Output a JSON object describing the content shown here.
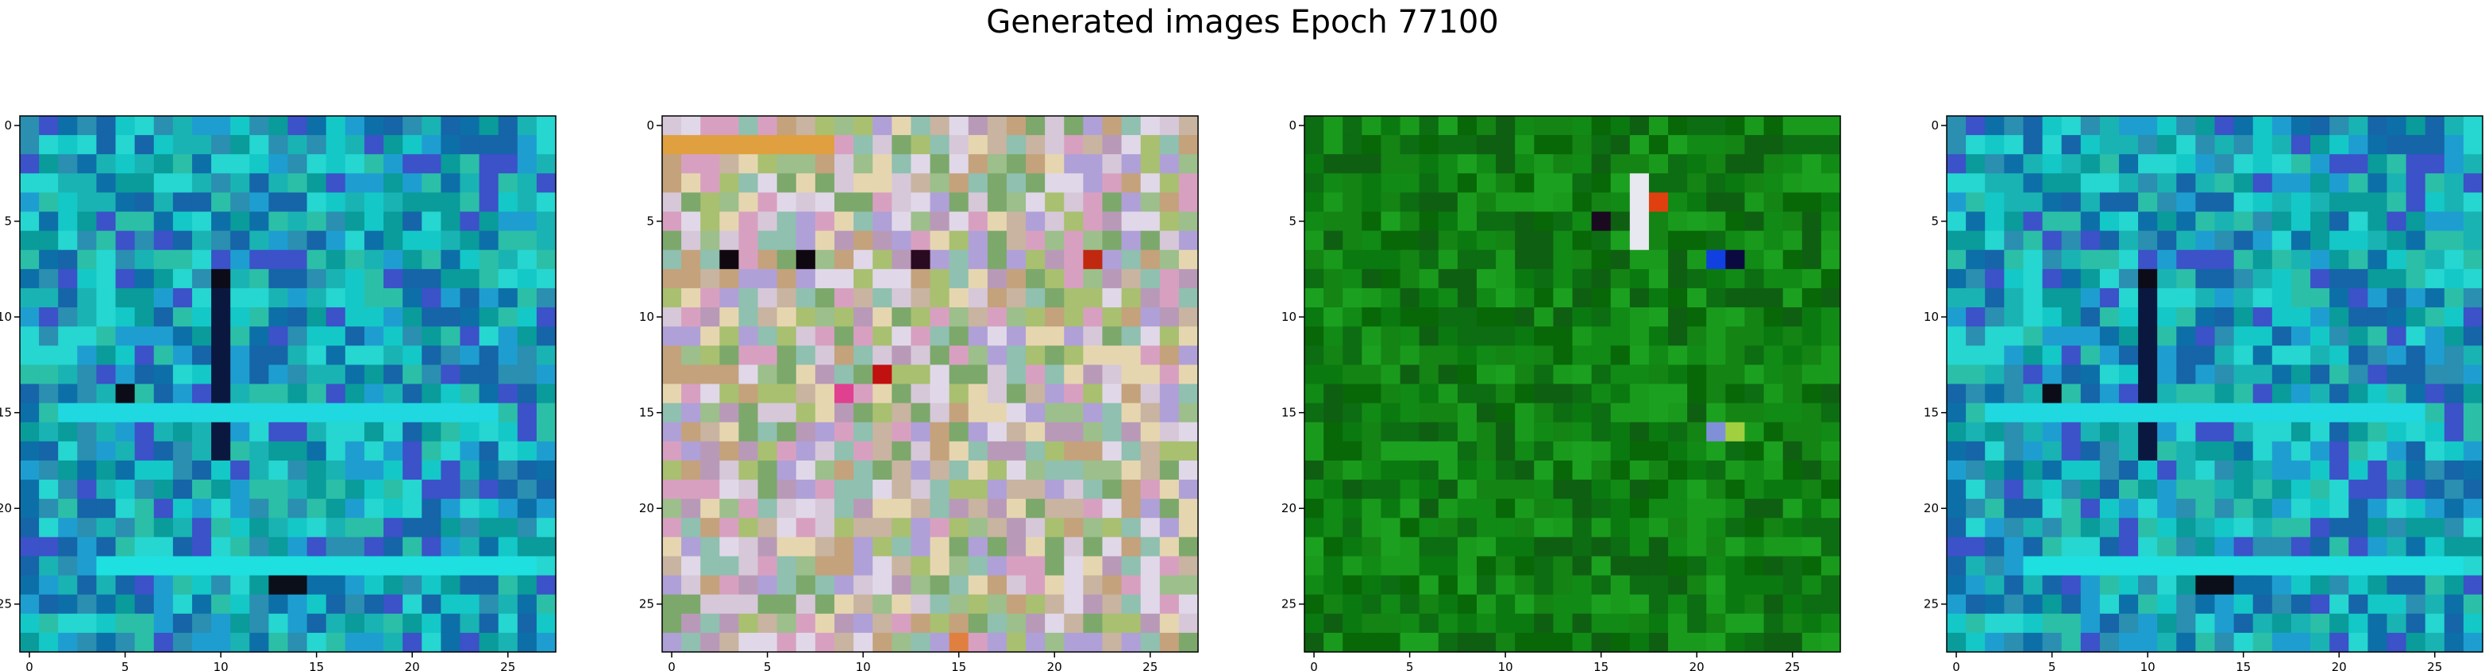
{
  "title": "Generated images Epoch 77100",
  "chart_data": [
    {
      "type": "heatmap",
      "description_key": "image-1",
      "grid": [
        28,
        28
      ],
      "xlim": [
        0,
        27
      ],
      "ylim": [
        27,
        0
      ],
      "xticks": [
        0,
        5,
        10,
        15,
        20,
        25
      ],
      "yticks": [
        0,
        5,
        10,
        15,
        20,
        25
      ],
      "palette": [
        "#0a9b9b",
        "#1ab3b3",
        "#2a8fb0",
        "#14c8c8",
        "#0d6fa8",
        "#1e9ed0",
        "#26d6d0",
        "#1565a8",
        "#3b52c8",
        "#2bbfa8"
      ],
      "features": [
        {
          "kind": "vline",
          "cols": [
            10,
            10
          ],
          "rows": [
            9,
            17
          ],
          "color": "#0a1840"
        },
        {
          "kind": "hline",
          "row": 23,
          "cols": [
            4,
            26
          ],
          "color": "#1ee0e0"
        },
        {
          "kind": "hline",
          "row": 15,
          "cols": [
            2,
            24
          ],
          "color": "#1fd8e0"
        },
        {
          "kind": "block",
          "row": 24,
          "cols": [
            13,
            14
          ],
          "color": "#0a0f1a"
        },
        {
          "kind": "block",
          "row": 14,
          "cols": [
            5,
            5
          ],
          "color": "#0c0c18"
        },
        {
          "kind": "block",
          "row": 8,
          "cols": [
            10,
            10
          ],
          "color": "#0c0c18"
        }
      ]
    },
    {
      "type": "heatmap",
      "description_key": "image-2",
      "grid": [
        28,
        28
      ],
      "xlim": [
        0,
        27
      ],
      "ylim": [
        27,
        0
      ],
      "xticks": [
        0,
        5,
        10,
        15,
        20,
        25
      ],
      "yticks": [
        0,
        5,
        10,
        15,
        20,
        25
      ],
      "palette": [
        "#c8b4a0",
        "#9cbf8c",
        "#b89ab8",
        "#d6c8d8",
        "#8fc0b0",
        "#c4a27c",
        "#a8c070",
        "#e0d8e8",
        "#7ca86c",
        "#b0a0d8",
        "#d8a0c0",
        "#e6d6b0"
      ],
      "features": [
        {
          "kind": "hline",
          "row": 1,
          "cols": [
            0,
            8
          ],
          "color": "#e0a040"
        },
        {
          "kind": "block",
          "row": 7,
          "cols": [
            3,
            3
          ],
          "color": "#100810"
        },
        {
          "kind": "block",
          "row": 7,
          "cols": [
            7,
            7
          ],
          "color": "#100810"
        },
        {
          "kind": "block",
          "row": 7,
          "cols": [
            13,
            13
          ],
          "color": "#2a0a20"
        },
        {
          "kind": "block",
          "row": 13,
          "cols": [
            11,
            11
          ],
          "color": "#c01010"
        },
        {
          "kind": "block",
          "row": 14,
          "cols": [
            9,
            9
          ],
          "color": "#e04090"
        },
        {
          "kind": "block",
          "row": 7,
          "cols": [
            22,
            22
          ],
          "color": "#c02810"
        },
        {
          "kind": "block",
          "row": 27,
          "cols": [
            15,
            15
          ],
          "color": "#e08040"
        }
      ]
    },
    {
      "type": "heatmap",
      "description_key": "image-3",
      "grid": [
        28,
        28
      ],
      "xlim": [
        0,
        27
      ],
      "ylim": [
        27,
        0
      ],
      "xticks": [
        0,
        5,
        10,
        15,
        20,
        25
      ],
      "yticks": [
        0,
        5,
        10,
        15,
        20,
        25
      ],
      "palette": [
        "#0a7a10",
        "#118a16",
        "#0d6d12",
        "#1a9a1c",
        "#0f5f12",
        "#148414",
        "#086808",
        "#1ca020"
      ],
      "features": [
        {
          "kind": "vline",
          "cols": [
            17,
            17
          ],
          "rows": [
            3,
            6
          ],
          "color": "#e8e8f0"
        },
        {
          "kind": "block",
          "row": 4,
          "cols": [
            18,
            18
          ],
          "color": "#e04010"
        },
        {
          "kind": "block",
          "row": 7,
          "cols": [
            21,
            21
          ],
          "color": "#1040e0"
        },
        {
          "kind": "block",
          "row": 7,
          "cols": [
            22,
            22
          ],
          "color": "#0a0a40"
        },
        {
          "kind": "block",
          "row": 5,
          "cols": [
            15,
            15
          ],
          "color": "#1a0a20"
        },
        {
          "kind": "block",
          "row": 16,
          "cols": [
            21,
            21
          ],
          "color": "#8090d8"
        },
        {
          "kind": "block",
          "row": 16,
          "cols": [
            22,
            22
          ],
          "color": "#a0d040"
        }
      ]
    },
    {
      "type": "heatmap",
      "description_key": "image-4",
      "grid": [
        28,
        28
      ],
      "xlim": [
        0,
        27
      ],
      "ylim": [
        27,
        0
      ],
      "xticks": [
        0,
        5,
        10,
        15,
        20,
        25
      ],
      "yticks": [
        0,
        5,
        10,
        15,
        20,
        25
      ],
      "palette": [
        "#0a9b9b",
        "#1ab3b3",
        "#2a8fb0",
        "#14c8c8",
        "#0d6fa8",
        "#1e9ed0",
        "#26d6d0",
        "#1565a8",
        "#3b52c8",
        "#2bbfa8"
      ],
      "features": [
        {
          "kind": "vline",
          "cols": [
            10,
            10
          ],
          "rows": [
            9,
            17
          ],
          "color": "#0a1840"
        },
        {
          "kind": "hline",
          "row": 23,
          "cols": [
            4,
            26
          ],
          "color": "#1ee0e0"
        },
        {
          "kind": "hline",
          "row": 15,
          "cols": [
            2,
            24
          ],
          "color": "#1fd8e0"
        },
        {
          "kind": "block",
          "row": 24,
          "cols": [
            13,
            14
          ],
          "color": "#0a0f1a"
        },
        {
          "kind": "block",
          "row": 14,
          "cols": [
            5,
            5
          ],
          "color": "#0c0c18"
        },
        {
          "kind": "block",
          "row": 8,
          "cols": [
            10,
            10
          ],
          "color": "#0c0c18"
        }
      ]
    }
  ]
}
